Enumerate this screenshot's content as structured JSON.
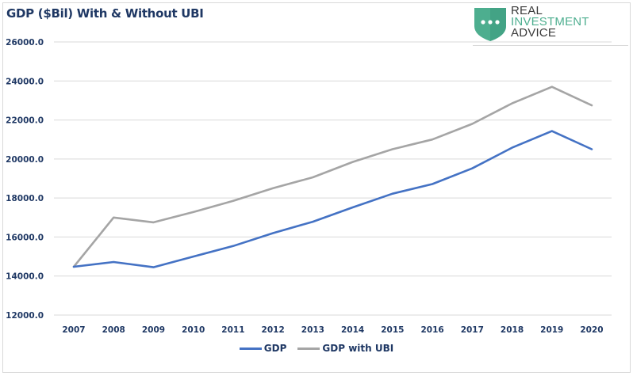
{
  "chart_data": {
    "type": "line",
    "title": "GDP ($Bil) With & Without UBI",
    "xlabel": "",
    "ylabel": "",
    "x": [
      "2007",
      "2008",
      "2009",
      "2010",
      "2011",
      "2012",
      "2013",
      "2014",
      "2015",
      "2016",
      "2017",
      "2018",
      "2019",
      "2020"
    ],
    "ylim": [
      12000,
      26000
    ],
    "yticks": [
      12000,
      14000,
      16000,
      18000,
      20000,
      22000,
      24000,
      26000
    ],
    "ytick_labels": [
      "12000.0",
      "14000.0",
      "16000.0",
      "18000.0",
      "20000.0",
      "22000.0",
      "24000.0",
      "26000.0"
    ],
    "grid": true,
    "legend_position": "bottom",
    "series": [
      {
        "name": "GDP",
        "color": "#4472c4",
        "values": [
          14475,
          14720,
          14450,
          15000,
          15540,
          16200,
          16785,
          17520,
          18220,
          18715,
          19520,
          20580,
          21430,
          20500
        ]
      },
      {
        "name": "GDP with UBI",
        "color": "#a5a5a5",
        "values": [
          14475,
          17000,
          16750,
          17280,
          17850,
          18500,
          19060,
          19850,
          20500,
          21000,
          21800,
          22850,
          23700,
          22750
        ]
      }
    ]
  },
  "logo": {
    "line1": "REAL",
    "line2": "INVESTMENT",
    "line3": "ADVICE",
    "shield_color": "#4dae8f",
    "icon": "shield-dots-icon"
  }
}
